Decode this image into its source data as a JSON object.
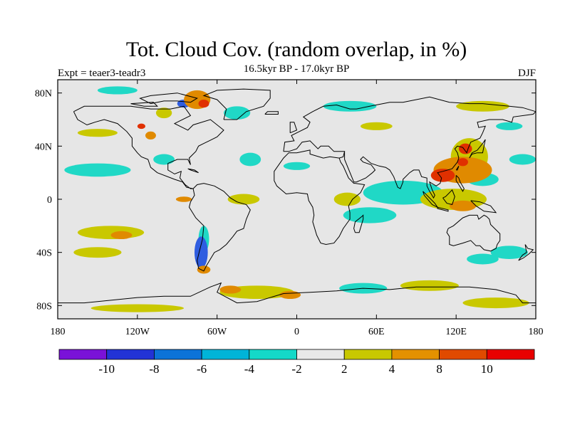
{
  "title": "Tot. Cloud Cov. (random overlap, in %)",
  "subtitle": "16.5kyr BP - 17.0kyr BP",
  "left_label": "Expt = teaer3-teadr3",
  "right_label": "DJF",
  "map": {
    "lon_range": [
      -180,
      180
    ],
    "lat_range": [
      -90,
      90
    ],
    "background_color": "#e6e6e6",
    "lon_ticks": [
      {
        "value": -180,
        "label": "180"
      },
      {
        "value": -120,
        "label": "120W"
      },
      {
        "value": -60,
        "label": "60W"
      },
      {
        "value": 0,
        "label": "0"
      },
      {
        "value": 60,
        "label": "60E"
      },
      {
        "value": 120,
        "label": "120E"
      },
      {
        "value": 180,
        "label": "180"
      }
    ],
    "lat_ticks": [
      {
        "value": 80,
        "label": "80N"
      },
      {
        "value": 40,
        "label": "40N"
      },
      {
        "value": 0,
        "label": "0"
      },
      {
        "value": -40,
        "label": "40S"
      },
      {
        "value": -80,
        "label": "80S"
      }
    ],
    "anomaly_regions": [
      {
        "lon": 125,
        "lat": 22,
        "rlon": 22,
        "rlat": 10,
        "level": "orange"
      },
      {
        "lon": 110,
        "lat": 18,
        "rlon": 9,
        "rlat": 5,
        "level": "red"
      },
      {
        "lon": 127,
        "lat": 38,
        "rlon": 5,
        "rlat": 4,
        "level": "red"
      },
      {
        "lon": 125,
        "lat": 28,
        "rlon": 4,
        "rlat": 3,
        "level": "red"
      },
      {
        "lon": 130,
        "lat": 32,
        "rlon": 14,
        "rlat": 14,
        "level": "yellow"
      },
      {
        "lon": 140,
        "lat": 15,
        "rlon": 12,
        "rlat": 5,
        "level": "teal"
      },
      {
        "lon": 118,
        "lat": 0,
        "rlon": 25,
        "rlat": 8,
        "level": "yellow"
      },
      {
        "lon": 125,
        "lat": -5,
        "rlon": 10,
        "rlat": 4,
        "level": "orange"
      },
      {
        "lon": 80,
        "lat": 5,
        "rlon": 30,
        "rlat": 9,
        "level": "teal"
      },
      {
        "lon": 55,
        "lat": -12,
        "rlon": 20,
        "rlat": 6,
        "level": "teal"
      },
      {
        "lon": 160,
        "lat": -40,
        "rlon": 14,
        "rlat": 5,
        "level": "teal"
      },
      {
        "lon": 140,
        "lat": -45,
        "rlon": 12,
        "rlat": 4,
        "level": "teal"
      },
      {
        "lon": -150,
        "lat": 22,
        "rlon": 25,
        "rlat": 5,
        "level": "teal"
      },
      {
        "lon": -140,
        "lat": -25,
        "rlon": 25,
        "rlat": 5,
        "level": "yellow"
      },
      {
        "lon": -132,
        "lat": -27,
        "rlon": 8,
        "rlat": 3,
        "level": "orange"
      },
      {
        "lon": -150,
        "lat": -40,
        "rlon": 18,
        "rlat": 4,
        "level": "yellow"
      },
      {
        "lon": -72,
        "lat": -40,
        "rlon": 5,
        "rlat": 12,
        "level": "blue"
      },
      {
        "lon": -70,
        "lat": -30,
        "rlon": 4,
        "rlat": 10,
        "level": "teal"
      },
      {
        "lon": -70,
        "lat": -53,
        "rlon": 5,
        "rlat": 3,
        "level": "orange"
      },
      {
        "lon": -40,
        "lat": 0,
        "rlon": 12,
        "rlat": 4,
        "level": "yellow"
      },
      {
        "lon": -85,
        "lat": 0,
        "rlon": 6,
        "rlat": 2,
        "level": "orange"
      },
      {
        "lon": 38,
        "lat": 0,
        "rlon": 10,
        "rlat": 5,
        "level": "yellow"
      },
      {
        "lon": -30,
        "lat": -70,
        "rlon": 28,
        "rlat": 5,
        "level": "yellow"
      },
      {
        "lon": -50,
        "lat": -68,
        "rlon": 8,
        "rlat": 3,
        "level": "orange"
      },
      {
        "lon": -5,
        "lat": -72,
        "rlon": 8,
        "rlat": 3,
        "level": "orange"
      },
      {
        "lon": 50,
        "lat": -67,
        "rlon": 18,
        "rlat": 4,
        "level": "teal"
      },
      {
        "lon": 100,
        "lat": -65,
        "rlon": 22,
        "rlat": 4,
        "level": "yellow"
      },
      {
        "lon": 150,
        "lat": -78,
        "rlon": 25,
        "rlat": 4,
        "level": "yellow"
      },
      {
        "lon": -120,
        "lat": -82,
        "rlon": 35,
        "rlat": 3,
        "level": "yellow"
      },
      {
        "lon": -75,
        "lat": 75,
        "rlon": 10,
        "rlat": 7,
        "level": "orange"
      },
      {
        "lon": -85,
        "lat": 72,
        "rlon": 5,
        "rlat": 3,
        "level": "blue"
      },
      {
        "lon": -70,
        "lat": 72,
        "rlon": 4,
        "rlat": 3,
        "level": "red"
      },
      {
        "lon": -100,
        "lat": 65,
        "rlon": 6,
        "rlat": 4,
        "level": "yellow"
      },
      {
        "lon": -110,
        "lat": 48,
        "rlon": 4,
        "rlat": 3,
        "level": "orange"
      },
      {
        "lon": -117,
        "lat": 55,
        "rlon": 3,
        "rlat": 2,
        "level": "red"
      },
      {
        "lon": -100,
        "lat": 30,
        "rlon": 8,
        "rlat": 4,
        "level": "teal"
      },
      {
        "lon": -135,
        "lat": 82,
        "rlon": 15,
        "rlat": 3,
        "level": "teal"
      },
      {
        "lon": -45,
        "lat": 65,
        "rlon": 10,
        "rlat": 5,
        "level": "teal"
      },
      {
        "lon": -35,
        "lat": 30,
        "rlon": 8,
        "rlat": 5,
        "level": "teal"
      },
      {
        "lon": 0,
        "lat": 25,
        "rlon": 10,
        "rlat": 3,
        "level": "teal"
      },
      {
        "lon": 40,
        "lat": 70,
        "rlon": 20,
        "rlat": 4,
        "level": "teal"
      },
      {
        "lon": 60,
        "lat": 55,
        "rlon": 12,
        "rlat": 3,
        "level": "yellow"
      },
      {
        "lon": 140,
        "lat": 70,
        "rlon": 20,
        "rlat": 4,
        "level": "yellow"
      },
      {
        "lon": 160,
        "lat": 55,
        "rlon": 10,
        "rlat": 3,
        "level": "teal"
      },
      {
        "lon": 170,
        "lat": 30,
        "rlon": 10,
        "rlat": 4,
        "level": "teal"
      },
      {
        "lon": -150,
        "lat": 50,
        "rlon": 15,
        "rlat": 3,
        "level": "yellow"
      }
    ]
  },
  "colorbar": {
    "colors": [
      "#7a12d8",
      "#2233d6",
      "#0c73d8",
      "#00b4d8",
      "#14d9c8",
      "#e8e8e8",
      "#c8c800",
      "#e39100",
      "#e04a00",
      "#e80000"
    ],
    "labels": [
      "-10",
      "-8",
      "-6",
      "-4",
      "-2",
      "2",
      "4",
      "8",
      "10"
    ]
  },
  "palette": {
    "blue": "#2f5de0",
    "teal": "#20d8c6",
    "yellow": "#c9c800",
    "orange": "#e08a00",
    "red": "#e03000"
  }
}
